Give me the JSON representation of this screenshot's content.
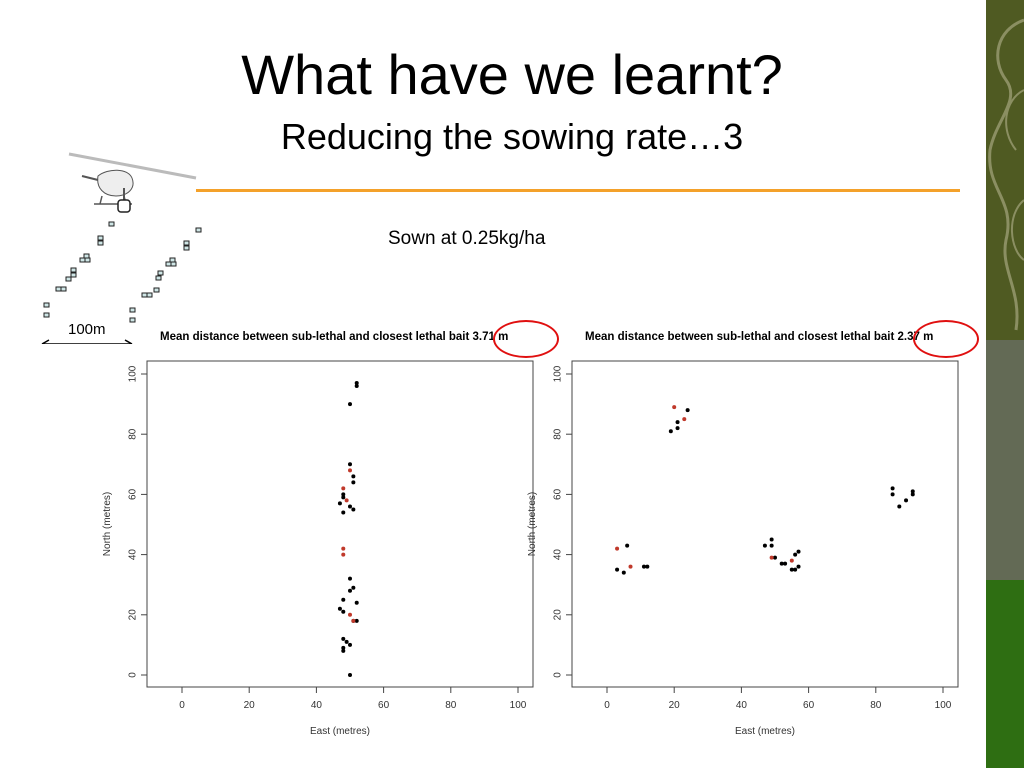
{
  "slide": {
    "title": "What have we learnt?",
    "subtitle": "Reducing the sowing rate…3",
    "annotation": "Sown at 0.25kg/ha",
    "scale_label": "100m",
    "accent_color": "#f4a12a",
    "side_colors": [
      "#4f5a22",
      "#636a55",
      "#2e6e12"
    ]
  },
  "chart_data": [
    {
      "type": "scatter",
      "title": "Mean distance between sub-lethal and closest lethal bait 3.71 m",
      "xlabel": "East (metres)",
      "ylabel": "North (metres)",
      "xlim": [
        0,
        100
      ],
      "ylim": [
        0,
        100
      ],
      "xticks": [
        0,
        20,
        40,
        60,
        80,
        100
      ],
      "yticks": [
        0,
        20,
        40,
        60,
        80,
        100
      ],
      "highlight_color": "#e01010",
      "series": [
        {
          "color": "#000000",
          "points": [
            [
              52,
              97
            ],
            [
              52,
              96
            ],
            [
              50,
              90
            ],
            [
              50,
              70
            ],
            [
              51,
              66
            ],
            [
              51,
              64
            ],
            [
              48,
              60
            ],
            [
              48,
              59
            ],
            [
              47,
              57
            ],
            [
              48,
              54
            ],
            [
              50,
              56
            ],
            [
              51,
              55
            ],
            [
              50,
              32
            ],
            [
              51,
              29
            ],
            [
              50,
              28
            ],
            [
              48,
              25
            ],
            [
              52,
              24
            ],
            [
              47,
              22
            ],
            [
              48,
              21
            ],
            [
              52,
              18
            ],
            [
              51,
              18
            ],
            [
              48,
              12
            ],
            [
              49,
              11
            ],
            [
              48,
              9
            ],
            [
              48,
              8
            ],
            [
              50,
              10
            ],
            [
              50,
              0
            ]
          ]
        },
        {
          "color": "#c0392b",
          "points": [
            [
              50,
              68
            ],
            [
              48,
              62
            ],
            [
              49,
              58
            ],
            [
              48,
              42
            ],
            [
              48,
              40
            ],
            [
              50,
              20
            ],
            [
              51,
              18
            ]
          ]
        }
      ]
    },
    {
      "type": "scatter",
      "title": "Mean distance between sub-lethal and closest lethal bait 2.37 m",
      "xlabel": "East (metres)",
      "ylabel": "North (metres)",
      "xlim": [
        0,
        100
      ],
      "ylim": [
        0,
        100
      ],
      "xticks": [
        0,
        20,
        40,
        60,
        80,
        100
      ],
      "yticks": [
        0,
        20,
        40,
        60,
        80,
        100
      ],
      "highlight_color": "#e01010",
      "series": [
        {
          "color": "#000000",
          "points": [
            [
              24,
              88
            ],
            [
              21,
              84
            ],
            [
              21,
              82
            ],
            [
              19,
              81
            ],
            [
              6,
              43
            ],
            [
              3,
              35
            ],
            [
              5,
              34
            ],
            [
              11,
              36
            ],
            [
              12,
              36
            ],
            [
              47,
              43
            ],
            [
              49,
              45
            ],
            [
              49,
              43
            ],
            [
              52,
              37
            ],
            [
              53,
              37
            ],
            [
              55,
              35
            ],
            [
              56,
              35
            ],
            [
              57,
              36
            ],
            [
              56,
              40
            ],
            [
              57,
              41
            ],
            [
              50,
              39
            ],
            [
              85,
              62
            ],
            [
              85,
              60
            ],
            [
              87,
              56
            ],
            [
              89,
              58
            ],
            [
              91,
              61
            ],
            [
              91,
              60
            ]
          ]
        },
        {
          "color": "#c0392b",
          "points": [
            [
              20,
              89
            ],
            [
              23,
              85
            ],
            [
              3,
              42
            ],
            [
              7,
              36
            ],
            [
              49,
              39
            ],
            [
              55,
              38
            ]
          ]
        }
      ]
    }
  ]
}
